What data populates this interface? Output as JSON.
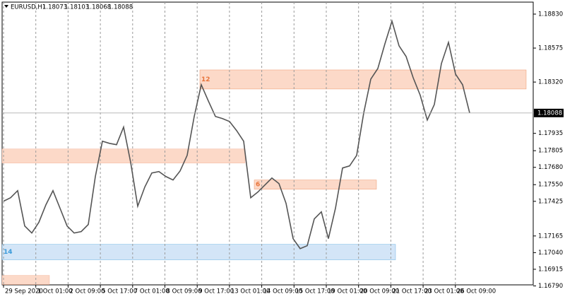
{
  "chart_data": {
    "type": "line",
    "header": {
      "symbol": "EURUSD,H1",
      "ohlc": [
        "1.18073",
        "1.18103",
        "1.18068",
        "1.18088"
      ]
    },
    "color": "#555555",
    "values": [
      1.17426,
      1.17452,
      1.17505,
      1.1724,
      1.17187,
      1.17267,
      1.17399,
      1.17505,
      1.17373,
      1.1724,
      1.17187,
      1.17198,
      1.17251,
      1.17611,
      1.17876,
      1.1786,
      1.1785,
      1.17982,
      1.17717,
      1.17388,
      1.17532,
      1.17638,
      1.17648,
      1.17611,
      1.17585,
      1.17653,
      1.1777,
      1.18062,
      1.183,
      1.18178,
      1.18062,
      1.18046,
      1.18024,
      1.17956,
      1.17876,
      1.17452,
      1.17494,
      1.17547,
      1.176,
      1.17558,
      1.1741,
      1.17145,
      1.1707,
      1.17092,
      1.17293,
      1.17346,
      1.17145,
      1.17373,
      1.17675,
      1.17691,
      1.1777,
      1.18088,
      1.18342,
      1.18422,
      1.18607,
      1.18777,
      1.18592,
      1.18512,
      1.18353,
      1.18221,
      1.18035,
      1.18152,
      1.18459,
      1.18618,
      1.1838,
      1.183,
      1.18088
    ],
    "xlim": [
      -0.2,
      75
    ],
    "xticks": [
      {
        "value": 0,
        "label": "29 Sep 2020"
      },
      {
        "value": 4.57,
        "label": "1 Oct 01:00"
      },
      {
        "value": 9.14,
        "label": "2 Oct 09:00"
      },
      {
        "value": 13.71,
        "label": "5 Oct 17:00"
      },
      {
        "value": 18.28,
        "label": "7 Oct 01:00"
      },
      {
        "value": 22.85,
        "label": "8 Oct 09:00"
      },
      {
        "value": 27.42,
        "label": "9 Oct 17:00"
      },
      {
        "value": 31.99,
        "label": "13 Oct 01:00"
      },
      {
        "value": 36.56,
        "label": "14 Oct 09:00"
      },
      {
        "value": 41.13,
        "label": "15 Oct 17:00"
      },
      {
        "value": 45.7,
        "label": "19 Oct 01:00"
      },
      {
        "value": 50.27,
        "label": "20 Oct 09:00"
      },
      {
        "value": 54.84,
        "label": "21 Oct 17:00"
      },
      {
        "value": 59.41,
        "label": "23 Oct 01:00"
      },
      {
        "value": 63.98,
        "label": "26 Oct 09:00"
      }
    ],
    "ylim": [
      1.16798,
      1.1892
    ],
    "yticks": [
      {
        "value": 1.1883,
        "label": "1.18830"
      },
      1.18575,
      {
        "value": 1.1832,
        "label": "1.18320"
      },
      1.17935,
      1.17805,
      {
        "value": 1.1768,
        "label": "1.17680"
      },
      {
        "value": 1.1755,
        "label": "1.17550"
      },
      1.17425,
      1.17165,
      {
        "value": 1.1704,
        "label": "1.17040"
      },
      1.16915,
      {
        "value": 1.1679,
        "label": "1.16790"
      }
    ],
    "last_price": 1.18088,
    "zones": [
      {
        "from": 27.8,
        "to": 74,
        "high": 1.18411,
        "low": 1.18268,
        "color": "#fcd9c8",
        "label": "12",
        "label_color": "#e8743b"
      },
      {
        "from": -0.2,
        "to": 34.2,
        "high": 1.17818,
        "low": 1.17712,
        "color": "#fcd9c8"
      },
      {
        "from": 35.5,
        "to": 52.8,
        "high": 1.17585,
        "low": 1.17516,
        "color": "#fcd9c8",
        "label": "6",
        "label_color": "#e8743b"
      },
      {
        "from": -0.2,
        "to": 55.5,
        "high": 1.17102,
        "low": 1.16986,
        "color": "#d3e5f7",
        "label": "14",
        "label_color": "#3a9ad9"
      },
      {
        "from": -0.2,
        "to": 6.5,
        "high": 1.16869,
        "low": 1.168,
        "color": "#fcd9c8"
      }
    ]
  }
}
